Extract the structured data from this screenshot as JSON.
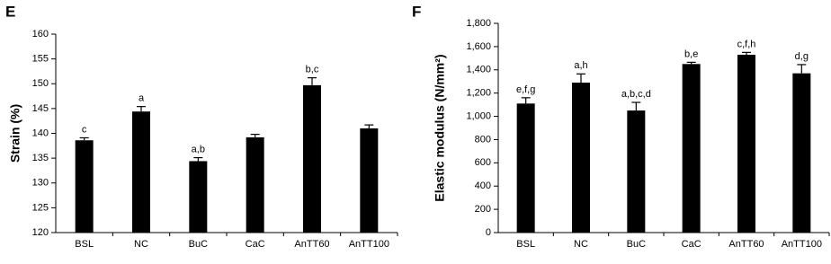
{
  "chart_data": [
    {
      "type": "bar",
      "panel": "E",
      "ylabel": "Strain (%)",
      "categories": [
        "BSL",
        "NC",
        "BuC",
        "CaC",
        "AnTT60",
        "AnTT100"
      ],
      "values": [
        138.6,
        144.4,
        134.4,
        139.2,
        149.7,
        141.0
      ],
      "errors": [
        0.5,
        1.0,
        0.7,
        0.6,
        1.5,
        0.7
      ],
      "annotations": [
        "c",
        "a",
        "a,b",
        null,
        "b,c",
        null
      ],
      "color": "#000000",
      "ylim": [
        120,
        160
      ],
      "yticks": [
        120,
        125,
        130,
        135,
        140,
        145,
        150,
        155,
        160
      ]
    },
    {
      "type": "bar",
      "panel": "F",
      "ylabel": "Elastic modulus (N/mm²)",
      "categories": [
        "BSL",
        "NC",
        "BuC",
        "CaC",
        "AnTT60",
        "AnTT100"
      ],
      "values": [
        1110,
        1290,
        1050,
        1450,
        1530,
        1370
      ],
      "errors": [
        50,
        75,
        70,
        15,
        20,
        75
      ],
      "annotations": [
        "e,f,g",
        "a,h",
        "a,b,c,d",
        "b,e",
        "c,f,h",
        "d,g"
      ],
      "color": "#000000",
      "ylim": [
        0,
        1800
      ],
      "yticks": [
        0,
        200,
        400,
        600,
        800,
        {
          "value": 1000,
          "label": "1,000"
        },
        {
          "value": 1200,
          "label": "1,200"
        },
        {
          "value": 1400,
          "label": "1,400"
        },
        {
          "value": 1600,
          "label": "1,600"
        },
        {
          "value": 1800,
          "label": "1,800"
        }
      ]
    }
  ]
}
